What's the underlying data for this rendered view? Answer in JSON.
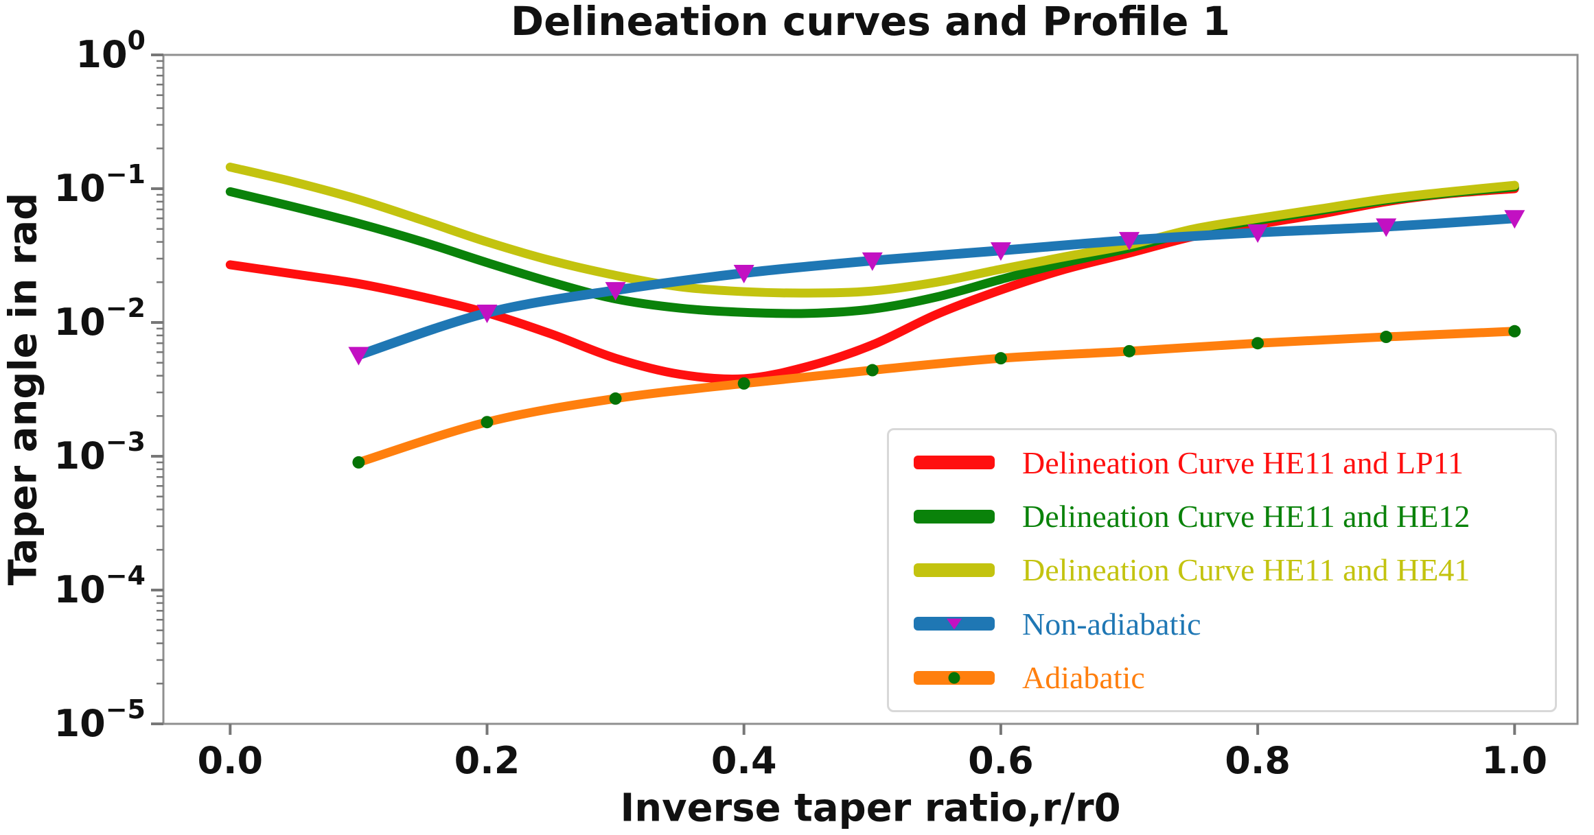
{
  "chart_data": {
    "type": "line",
    "title": "Delineation curves and Profile 1",
    "xlabel": "Inverse taper ratio,r/r0",
    "ylabel": "Taper angle in rad",
    "x_axis": {
      "min": -0.052,
      "max": 1.049,
      "grid": false,
      "ticks": [
        0.0,
        0.2,
        0.4,
        0.6,
        0.8,
        1.0
      ],
      "tick_labels": [
        "0.0",
        "0.2",
        "0.4",
        "0.6",
        "0.8",
        "1.0"
      ]
    },
    "y_axis": {
      "scale": "log",
      "min": 1e-05,
      "max": 1,
      "grid": false,
      "major_exponents": [
        0,
        -1,
        -2,
        -3,
        -4,
        -5
      ]
    },
    "legend_position": "lower right",
    "series": [
      {
        "id": "he11-lp11",
        "name": "Delineation Curve HE11 and LP11",
        "color": "#ff0f0f",
        "line_width": 13,
        "marker": null,
        "points": [
          [
            0.0,
            0.027
          ],
          [
            0.05,
            0.023
          ],
          [
            0.1,
            0.0195
          ],
          [
            0.15,
            0.0155
          ],
          [
            0.2,
            0.0118
          ],
          [
            0.25,
            0.0082
          ],
          [
            0.3,
            0.0054
          ],
          [
            0.35,
            0.0041
          ],
          [
            0.4,
            0.0038
          ],
          [
            0.45,
            0.0047
          ],
          [
            0.5,
            0.0068
          ],
          [
            0.55,
            0.0115
          ],
          [
            0.6,
            0.0175
          ],
          [
            0.65,
            0.025
          ],
          [
            0.7,
            0.033
          ],
          [
            0.75,
            0.044
          ],
          [
            0.8,
            0.054
          ],
          [
            0.85,
            0.065
          ],
          [
            0.9,
            0.08
          ],
          [
            0.95,
            0.092
          ],
          [
            1.0,
            0.1
          ]
        ]
      },
      {
        "id": "he11-he12",
        "name": "Delineation Curve HE11 and HE12",
        "color": "#0a820a",
        "line_width": 13,
        "marker": null,
        "points": [
          [
            0.0,
            0.095
          ],
          [
            0.05,
            0.073
          ],
          [
            0.1,
            0.055
          ],
          [
            0.15,
            0.04
          ],
          [
            0.2,
            0.028
          ],
          [
            0.25,
            0.02
          ],
          [
            0.3,
            0.015
          ],
          [
            0.35,
            0.0128
          ],
          [
            0.4,
            0.0119
          ],
          [
            0.45,
            0.0117
          ],
          [
            0.5,
            0.0126
          ],
          [
            0.55,
            0.0155
          ],
          [
            0.6,
            0.021
          ],
          [
            0.65,
            0.028
          ],
          [
            0.7,
            0.036
          ],
          [
            0.75,
            0.048
          ],
          [
            0.8,
            0.058
          ],
          [
            0.85,
            0.069
          ],
          [
            0.9,
            0.082
          ],
          [
            0.95,
            0.093
          ],
          [
            1.0,
            0.103
          ]
        ]
      },
      {
        "id": "he11-he41",
        "name": "Delineation Curve HE11 and HE41",
        "color": "#c3c30f",
        "line_width": 13,
        "marker": null,
        "points": [
          [
            0.0,
            0.145
          ],
          [
            0.05,
            0.112
          ],
          [
            0.1,
            0.083
          ],
          [
            0.15,
            0.058
          ],
          [
            0.2,
            0.04
          ],
          [
            0.25,
            0.029
          ],
          [
            0.3,
            0.0225
          ],
          [
            0.35,
            0.0185
          ],
          [
            0.4,
            0.017
          ],
          [
            0.45,
            0.0166
          ],
          [
            0.5,
            0.0172
          ],
          [
            0.55,
            0.02
          ],
          [
            0.6,
            0.025
          ],
          [
            0.65,
            0.031
          ],
          [
            0.7,
            0.038
          ],
          [
            0.75,
            0.05
          ],
          [
            0.8,
            0.06
          ],
          [
            0.85,
            0.071
          ],
          [
            0.9,
            0.084
          ],
          [
            0.95,
            0.095
          ],
          [
            1.0,
            0.106
          ]
        ]
      },
      {
        "id": "non-adiabatic",
        "name": "Non-adiabatic",
        "color": "#1f77b4",
        "line_width": 14,
        "marker": {
          "shape": "triangle-down",
          "color": "#c211c2",
          "size": 15
        },
        "points": [
          [
            0.1,
            0.0057
          ],
          [
            0.2,
            0.0118
          ],
          [
            0.3,
            0.0174
          ],
          [
            0.4,
            0.0234
          ],
          [
            0.5,
            0.029
          ],
          [
            0.6,
            0.0345
          ],
          [
            0.7,
            0.0412
          ],
          [
            0.8,
            0.047
          ],
          [
            0.9,
            0.052
          ],
          [
            1.0,
            0.06
          ]
        ]
      },
      {
        "id": "adiabatic",
        "name": "Adiabatic",
        "color": "#ff7f0e",
        "line_width": 13,
        "marker": {
          "shape": "circle",
          "color": "#067306",
          "size": 9
        },
        "points": [
          [
            0.1,
            0.0009
          ],
          [
            0.2,
            0.0018
          ],
          [
            0.3,
            0.0027
          ],
          [
            0.4,
            0.0035
          ],
          [
            0.5,
            0.0044
          ],
          [
            0.6,
            0.0054
          ],
          [
            0.7,
            0.0061
          ],
          [
            0.8,
            0.007
          ],
          [
            0.9,
            0.0078
          ],
          [
            1.0,
            0.0086
          ]
        ]
      }
    ]
  },
  "style": {
    "spine_color": "#8f8f8f",
    "tick_color": "#777777",
    "text_color": "#111111"
  }
}
